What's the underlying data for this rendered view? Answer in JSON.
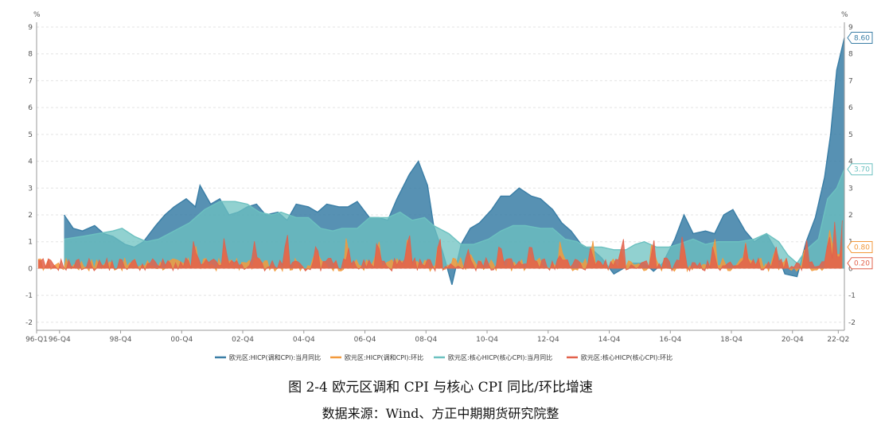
{
  "chart_data": {
    "type": "area",
    "unit_left": "%",
    "unit_right": "%",
    "ylim": [
      -2.3,
      9
    ],
    "y_ticks": [
      -2,
      -1,
      0,
      1,
      2,
      3,
      4,
      5,
      6,
      7,
      8,
      9
    ],
    "x_tick_labels": [
      "96-Q1",
      "96-Q4",
      "98-Q4",
      "00-Q4",
      "02-Q4",
      "04-Q4",
      "06-Q4",
      "08-Q4",
      "10-Q4",
      "12-Q4",
      "14-Q4",
      "16-Q4",
      "18-Q4",
      "20-Q4",
      "22-Q2"
    ],
    "grid": "horizontal-dashed",
    "legend_position": "bottom",
    "series": [
      {
        "name": "欧元区:HICP(调和CPI):当月同比",
        "color": "#3a7ea6",
        "style": "area",
        "end_label": "8.60",
        "points": [
          [
            1996.9,
            2.0
          ],
          [
            1997.2,
            1.5
          ],
          [
            1997.5,
            1.4
          ],
          [
            1997.9,
            1.6
          ],
          [
            1998.2,
            1.3
          ],
          [
            1998.5,
            1.2
          ],
          [
            1998.9,
            0.9
          ],
          [
            1999.2,
            0.8
          ],
          [
            1999.5,
            1.0
          ],
          [
            1999.9,
            1.6
          ],
          [
            2000.2,
            2.0
          ],
          [
            2000.5,
            2.3
          ],
          [
            2000.9,
            2.6
          ],
          [
            2001.2,
            2.3
          ],
          [
            2001.35,
            3.1
          ],
          [
            2001.7,
            2.4
          ],
          [
            2002.0,
            2.6
          ],
          [
            2002.3,
            2.0
          ],
          [
            2002.6,
            2.1
          ],
          [
            2002.9,
            2.3
          ],
          [
            2003.2,
            2.4
          ],
          [
            2003.5,
            2.0
          ],
          [
            2003.9,
            2.1
          ],
          [
            2004.2,
            1.8
          ],
          [
            2004.5,
            2.4
          ],
          [
            2004.9,
            2.3
          ],
          [
            2005.2,
            2.1
          ],
          [
            2005.5,
            2.4
          ],
          [
            2005.9,
            2.3
          ],
          [
            2006.2,
            2.3
          ],
          [
            2006.5,
            2.5
          ],
          [
            2006.9,
            1.9
          ],
          [
            2007.2,
            1.9
          ],
          [
            2007.5,
            1.8
          ],
          [
            2007.8,
            2.6
          ],
          [
            2008.2,
            3.5
          ],
          [
            2008.5,
            4.0
          ],
          [
            2008.8,
            3.1
          ],
          [
            2009.0,
            1.6
          ],
          [
            2009.3,
            0.6
          ],
          [
            2009.6,
            -0.6
          ],
          [
            2009.9,
            0.9
          ],
          [
            2010.2,
            1.5
          ],
          [
            2010.5,
            1.7
          ],
          [
            2010.9,
            2.2
          ],
          [
            2011.2,
            2.7
          ],
          [
            2011.5,
            2.7
          ],
          [
            2011.8,
            3.0
          ],
          [
            2012.2,
            2.7
          ],
          [
            2012.5,
            2.6
          ],
          [
            2012.9,
            2.2
          ],
          [
            2013.2,
            1.7
          ],
          [
            2013.5,
            1.4
          ],
          [
            2013.9,
            0.8
          ],
          [
            2014.2,
            0.7
          ],
          [
            2014.5,
            0.4
          ],
          [
            2014.9,
            -0.2
          ],
          [
            2015.2,
            0.0
          ],
          [
            2015.5,
            0.2
          ],
          [
            2015.9,
            0.2
          ],
          [
            2016.2,
            -0.1
          ],
          [
            2016.5,
            0.2
          ],
          [
            2016.9,
            1.1
          ],
          [
            2017.2,
            2.0
          ],
          [
            2017.5,
            1.3
          ],
          [
            2017.9,
            1.4
          ],
          [
            2018.2,
            1.3
          ],
          [
            2018.5,
            2.0
          ],
          [
            2018.8,
            2.2
          ],
          [
            2019.2,
            1.4
          ],
          [
            2019.5,
            1.0
          ],
          [
            2019.9,
            1.3
          ],
          [
            2020.2,
            0.7
          ],
          [
            2020.5,
            -0.2
          ],
          [
            2020.9,
            -0.3
          ],
          [
            2021.2,
            1.0
          ],
          [
            2021.5,
            1.9
          ],
          [
            2021.8,
            3.4
          ],
          [
            2022.0,
            5.0
          ],
          [
            2022.2,
            7.4
          ],
          [
            2022.45,
            8.6
          ]
        ]
      },
      {
        "name": "欧元区:HICP(调和CPI):环比",
        "color": "#f39a3c",
        "style": "spiky-area",
        "end_label": "0.80"
      },
      {
        "name": "欧元区:核心HICP(核心CPI):当月同比",
        "color": "#6cc1c0",
        "style": "area",
        "end_label": "3.70",
        "points": [
          [
            1996.9,
            1.1
          ],
          [
            1997.5,
            1.2
          ],
          [
            1998.0,
            1.3
          ],
          [
            1998.5,
            1.4
          ],
          [
            1998.8,
            1.5
          ],
          [
            1999.2,
            1.2
          ],
          [
            1999.6,
            1.0
          ],
          [
            2000.0,
            1.1
          ],
          [
            2000.5,
            1.4
          ],
          [
            2001.0,
            1.7
          ],
          [
            2001.5,
            2.2
          ],
          [
            2002.0,
            2.5
          ],
          [
            2002.5,
            2.5
          ],
          [
            2002.9,
            2.4
          ],
          [
            2003.3,
            2.1
          ],
          [
            2003.7,
            2.0
          ],
          [
            2004.0,
            2.1
          ],
          [
            2004.5,
            1.9
          ],
          [
            2004.9,
            1.9
          ],
          [
            2005.3,
            1.5
          ],
          [
            2005.7,
            1.4
          ],
          [
            2006.0,
            1.5
          ],
          [
            2006.5,
            1.5
          ],
          [
            2006.9,
            1.9
          ],
          [
            2007.5,
            1.9
          ],
          [
            2007.9,
            2.1
          ],
          [
            2008.3,
            1.8
          ],
          [
            2008.7,
            1.9
          ],
          [
            2009.0,
            1.6
          ],
          [
            2009.5,
            1.3
          ],
          [
            2009.9,
            0.9
          ],
          [
            2010.3,
            0.9
          ],
          [
            2010.8,
            1.1
          ],
          [
            2011.2,
            1.4
          ],
          [
            2011.6,
            1.6
          ],
          [
            2012.0,
            1.6
          ],
          [
            2012.5,
            1.5
          ],
          [
            2012.9,
            1.5
          ],
          [
            2013.3,
            1.1
          ],
          [
            2013.7,
            1.0
          ],
          [
            2014.0,
            0.8
          ],
          [
            2014.5,
            0.8
          ],
          [
            2014.9,
            0.7
          ],
          [
            2015.3,
            0.7
          ],
          [
            2015.6,
            0.9
          ],
          [
            2015.9,
            1.0
          ],
          [
            2016.3,
            0.8
          ],
          [
            2016.7,
            0.8
          ],
          [
            2017.0,
            0.9
          ],
          [
            2017.5,
            1.1
          ],
          [
            2017.9,
            0.9
          ],
          [
            2018.3,
            1.0
          ],
          [
            2018.7,
            1.0
          ],
          [
            2019.0,
            1.0
          ],
          [
            2019.5,
            1.1
          ],
          [
            2019.9,
            1.3
          ],
          [
            2020.3,
            1.0
          ],
          [
            2020.6,
            0.5
          ],
          [
            2020.9,
            0.2
          ],
          [
            2021.2,
            0.7
          ],
          [
            2021.6,
            1.1
          ],
          [
            2021.9,
            2.6
          ],
          [
            2022.2,
            3.0
          ],
          [
            2022.45,
            3.7
          ]
        ]
      },
      {
        "name": "欧元区:核心HICP(核心CPI):环比",
        "color": "#e2614b",
        "style": "spiky-area",
        "end_label": "0.20"
      }
    ]
  },
  "caption": {
    "title": "图 2-4 欧元区调和 CPI 与核心 CPI 同比/环比增速",
    "source": "数据来源：Wind、方正中期期货研究院整"
  }
}
